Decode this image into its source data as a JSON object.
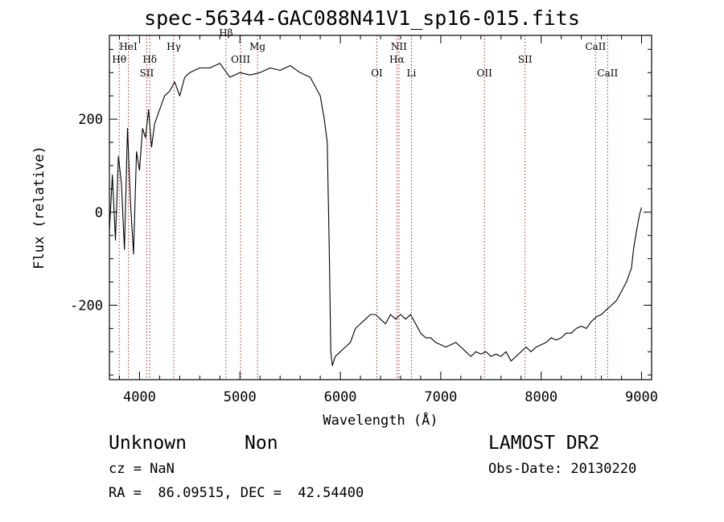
{
  "chart_data": {
    "type": "line",
    "title": "spec-56344-GAC088N41V1_sp16-015.fits",
    "xlabel": "Wavelength (Å)",
    "ylabel": "Flux (relative)",
    "xlim": [
      3700,
      9100
    ],
    "ylim": [
      -360,
      380
    ],
    "xticks": [
      4000,
      5000,
      6000,
      7000,
      8000,
      9000
    ],
    "yticks": [
      -200,
      0,
      200
    ],
    "grid": false,
    "line_color": "#000000",
    "marker_color": "#a52a2a",
    "series": [
      {
        "x": [
          3700,
          3730,
          3760,
          3790,
          3820,
          3850,
          3880,
          3910,
          3940,
          3970,
          4000,
          4030,
          4060,
          4090,
          4120,
          4150,
          4200,
          4250,
          4300,
          4350,
          4400,
          4450,
          4500,
          4600,
          4700,
          4800,
          4900,
          5000,
          5100,
          5200,
          5300,
          5400,
          5500,
          5600,
          5700,
          5750,
          5800,
          5840,
          5870,
          5890,
          5905,
          5920,
          5950,
          6000,
          6050,
          6100,
          6150,
          6200,
          6250,
          6300,
          6350,
          6400,
          6450,
          6500,
          6550,
          6600,
          6650,
          6700,
          6750,
          6800,
          6850,
          6900,
          6950,
          7000,
          7050,
          7100,
          7150,
          7200,
          7250,
          7300,
          7350,
          7400,
          7450,
          7500,
          7550,
          7600,
          7650,
          7700,
          7750,
          7800,
          7850,
          7900,
          7950,
          8000,
          8050,
          8100,
          8150,
          8200,
          8250,
          8300,
          8350,
          8400,
          8450,
          8500,
          8550,
          8600,
          8650,
          8700,
          8750,
          8800,
          8850,
          8900,
          8920,
          8950,
          8980,
          9000
        ],
        "y": [
          -40,
          80,
          -60,
          120,
          60,
          -80,
          180,
          20,
          -90,
          130,
          90,
          180,
          160,
          220,
          140,
          190,
          220,
          250,
          260,
          280,
          250,
          290,
          300,
          310,
          310,
          320,
          290,
          300,
          295,
          300,
          310,
          305,
          315,
          300,
          290,
          270,
          250,
          200,
          150,
          -80,
          -300,
          -330,
          -310,
          -300,
          -290,
          -280,
          -250,
          -240,
          -230,
          -220,
          -220,
          -230,
          -240,
          -220,
          -230,
          -220,
          -230,
          -220,
          -240,
          -260,
          -270,
          -270,
          -280,
          -285,
          -290,
          -285,
          -280,
          -290,
          -300,
          -310,
          -300,
          -305,
          -300,
          -310,
          -305,
          -310,
          -300,
          -320,
          -310,
          -300,
          -290,
          -300,
          -290,
          -285,
          -280,
          -270,
          -275,
          -270,
          -260,
          -260,
          -250,
          -245,
          -250,
          -235,
          -225,
          -220,
          -210,
          -200,
          -190,
          -170,
          -150,
          -120,
          -80,
          -40,
          -5,
          10
        ]
      }
    ],
    "lines": [
      {
        "wl": 3798,
        "label": "Hθ",
        "row": 2
      },
      {
        "wl": 3889,
        "label": "HeI",
        "row": 1
      },
      {
        "wl": 4072,
        "label": "SII",
        "row": 3
      },
      {
        "wl": 4102,
        "label": "Hδ",
        "row": 2
      },
      {
        "wl": 4341,
        "label": "Hγ",
        "row": 1
      },
      {
        "wl": 4861,
        "label": "Hβ",
        "row": 0
      },
      {
        "wl": 5007,
        "label": "OIII",
        "row": 2
      },
      {
        "wl": 5175,
        "label": "Mg",
        "row": 1
      },
      {
        "wl": 6364,
        "label": "OI",
        "row": 3
      },
      {
        "wl": 6563,
        "label": "Hα",
        "row": 2
      },
      {
        "wl": 6583,
        "label": "NII",
        "row": 1
      },
      {
        "wl": 6708,
        "label": "Li",
        "row": 3
      },
      {
        "wl": 7435,
        "label": "OII",
        "row": 3
      },
      {
        "wl": 7840,
        "label": "SII",
        "row": 2
      },
      {
        "wl": 8542,
        "label": "CaII",
        "row": 1
      },
      {
        "wl": 8662,
        "label": "CaII",
        "row": 3
      }
    ]
  },
  "footer": {
    "object_class": "Unknown",
    "object_subclass": "Non",
    "survey": "LAMOST DR2",
    "cz": "cz = NaN",
    "obs_date": "Obs-Date: 20130220",
    "coords": "RA =  86.09515, DEC =  42.54400"
  }
}
